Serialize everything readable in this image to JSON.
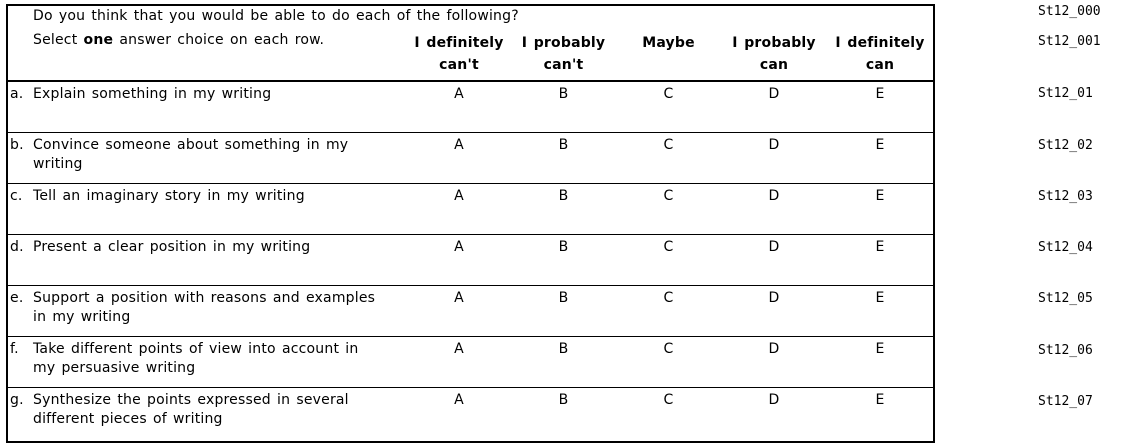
{
  "form": {
    "prompt": "Do you think that you would be able to do each of the following?",
    "instruction": {
      "prefix": "Select ",
      "bold": "one",
      "suffix": " answer choice on each row."
    },
    "columns": [
      "I definitely\ncan't",
      "I probably\ncan't",
      "Maybe",
      "I probably\ncan",
      "I definitely\ncan"
    ],
    "option_letters": [
      "A",
      "B",
      "C",
      "D",
      "E"
    ],
    "rows": [
      {
        "letter": "a.",
        "text": "Explain something in my writing"
      },
      {
        "letter": "b.",
        "text": "Convince someone about something in my\nwriting"
      },
      {
        "letter": "c.",
        "text": "Tell an imaginary story in my writing"
      },
      {
        "letter": "d.",
        "text": "Present a clear position in my writing"
      },
      {
        "letter": "e.",
        "text": "Support a position with reasons and examples\nin my writing"
      },
      {
        "letter": "f.",
        "text": "Take different points of view into account in\nmy persuasive writing"
      },
      {
        "letter": "g.",
        "text": "Synthesize the points expressed in several\ndifferent pieces of writing"
      }
    ]
  },
  "codes": [
    "St12_000",
    "St12_001",
    "St12_01",
    "St12_02",
    "St12_03",
    "St12_04",
    "St12_05",
    "St12_06",
    "St12_07"
  ],
  "colors": {
    "text": "#000000",
    "background": "#ffffff",
    "border": "#000000"
  }
}
